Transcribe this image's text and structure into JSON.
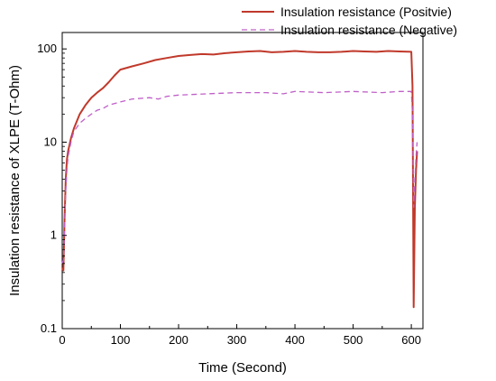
{
  "chart_data": {
    "type": "line",
    "xlabel": "Time (Second)",
    "ylabel": "Insulation resistance of XLPE (T-Ohm)",
    "xlim": [
      0,
      620
    ],
    "ylim": [
      0.1,
      150
    ],
    "yscale": "log",
    "xticks": [
      0,
      100,
      200,
      300,
      400,
      500,
      600
    ],
    "yticks": [
      0.1,
      1,
      10,
      100
    ],
    "ytick_labels": [
      "0.1",
      "1",
      "10",
      "100"
    ],
    "legend_position": "top-right",
    "grid": false,
    "series": [
      {
        "name": "Insulation resistance (Positvie)",
        "color": "#c0392b",
        "style": "solid",
        "x": [
          0,
          2,
          4,
          6,
          8,
          10,
          15,
          20,
          30,
          40,
          50,
          60,
          70,
          80,
          90,
          100,
          120,
          140,
          160,
          180,
          200,
          220,
          240,
          260,
          280,
          300,
          320,
          340,
          360,
          380,
          400,
          420,
          440,
          460,
          480,
          500,
          520,
          540,
          560,
          580,
          600,
          602,
          604,
          606,
          608,
          610
        ],
        "y": [
          0.45,
          0.42,
          1.5,
          4.0,
          6.5,
          8.0,
          11,
          14,
          20,
          25,
          30,
          34,
          38,
          44,
          52,
          60,
          65,
          70,
          76,
          80,
          84,
          86,
          88,
          87,
          90,
          92,
          94,
          95,
          92,
          93,
          95,
          93,
          92,
          92,
          93,
          95,
          94,
          93,
          95,
          94,
          93,
          40,
          0.17,
          2.0,
          5.0,
          8.0
        ]
      },
      {
        "name": "Insulation resistance (Negative)",
        "color": "#c060c8",
        "style": "dashed",
        "x": [
          0,
          2,
          4,
          6,
          8,
          10,
          15,
          20,
          30,
          40,
          50,
          60,
          70,
          80,
          100,
          120,
          150,
          165,
          180,
          200,
          250,
          300,
          350,
          380,
          400,
          450,
          500,
          550,
          580,
          600,
          602,
          604,
          606,
          608,
          610
        ],
        "y": [
          0.5,
          0.55,
          1.2,
          3.0,
          5.0,
          7.0,
          10,
          13,
          16,
          18,
          20,
          22,
          23,
          25,
          27,
          29,
          30,
          29,
          31,
          32,
          33,
          34,
          34,
          33,
          35,
          34,
          35,
          34,
          35,
          35,
          20,
          2.0,
          4.0,
          7.0,
          10
        ]
      }
    ]
  }
}
